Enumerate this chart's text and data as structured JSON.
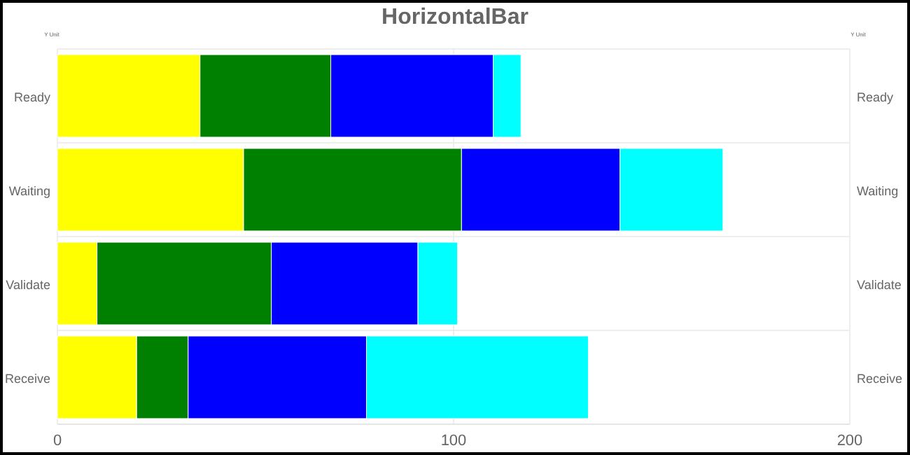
{
  "chart_data": {
    "type": "bar",
    "orientation": "horizontal",
    "stacked": true,
    "title": "HorizontalBar",
    "ylabel": "Y Unit",
    "y2label": "Y Unit",
    "categories": [
      "Ready",
      "Waiting",
      "Validate",
      "Receive"
    ],
    "series": [
      {
        "color": "#ffff00",
        "values": [
          36,
          47,
          10,
          20
        ]
      },
      {
        "color": "#008000",
        "values": [
          33,
          55,
          44,
          13
        ]
      },
      {
        "color": "#0000ff",
        "values": [
          41,
          40,
          37,
          45
        ]
      },
      {
        "color": "#00ffff",
        "values": [
          7,
          26,
          10,
          56
        ]
      }
    ],
    "xlim": [
      0,
      200
    ],
    "xticks": [
      0,
      100,
      200
    ],
    "grid": true
  }
}
